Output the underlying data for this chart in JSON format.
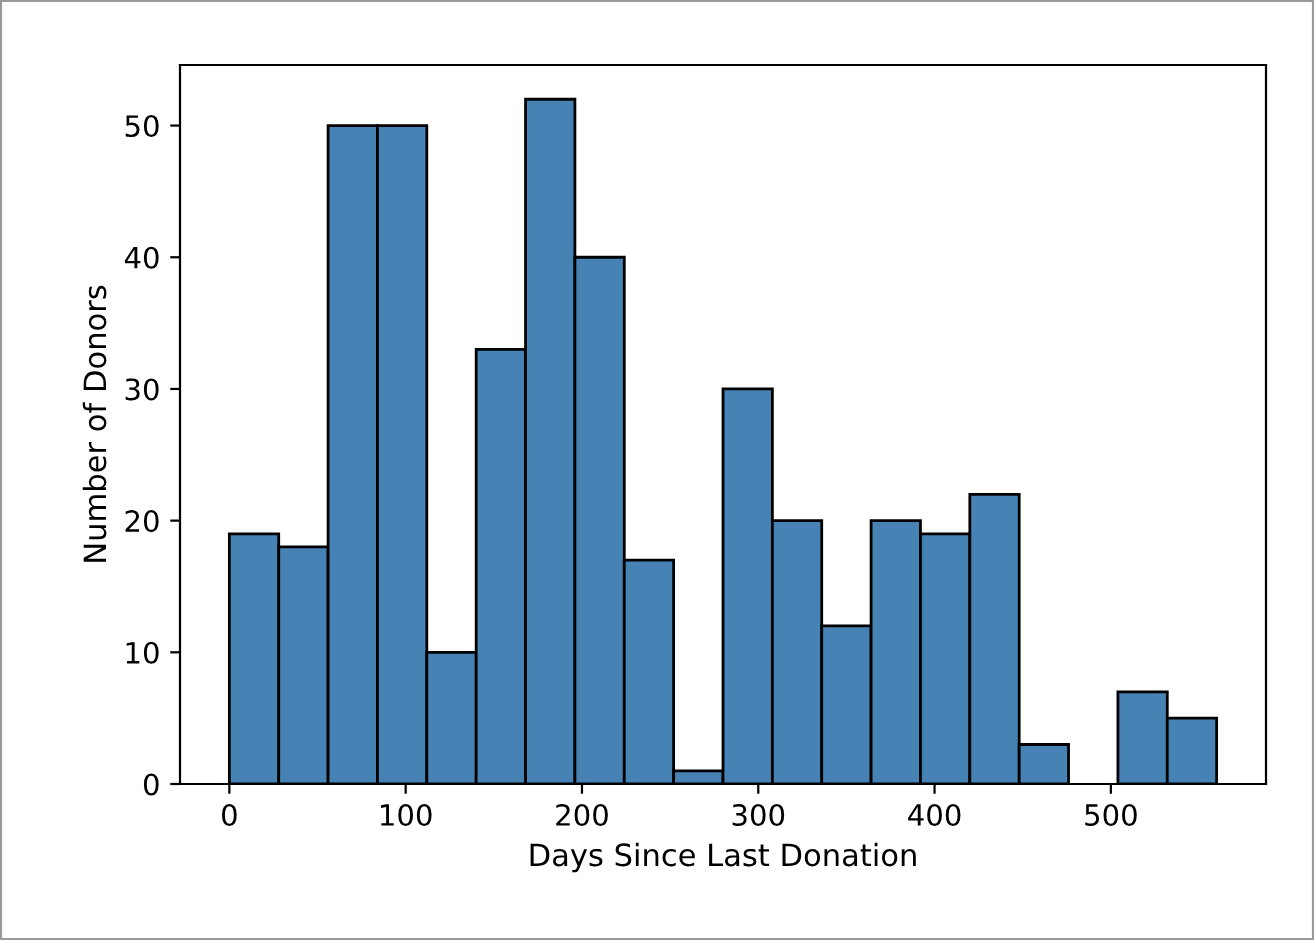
{
  "chart_data": {
    "type": "histogram",
    "xlabel": "Days Since Last Donation",
    "ylabel": "Number of Donors",
    "bins": [
      0,
      28,
      56,
      84,
      112,
      140,
      168,
      196,
      224,
      252,
      280,
      308,
      336,
      364,
      392,
      420,
      448,
      476,
      504,
      532,
      560
    ],
    "values": [
      19,
      18,
      50,
      50,
      10,
      33,
      52,
      40,
      17,
      1,
      30,
      20,
      12,
      20,
      19,
      22,
      3,
      0,
      7,
      5
    ],
    "color": "#4682b4",
    "xlim": [
      -28,
      588
    ],
    "ylim": [
      0,
      54.6
    ],
    "xticks": [
      0,
      100,
      200,
      300,
      400,
      500
    ],
    "yticks": [
      0,
      10,
      20,
      30,
      40,
      50
    ],
    "grid": false,
    "legend": false
  }
}
